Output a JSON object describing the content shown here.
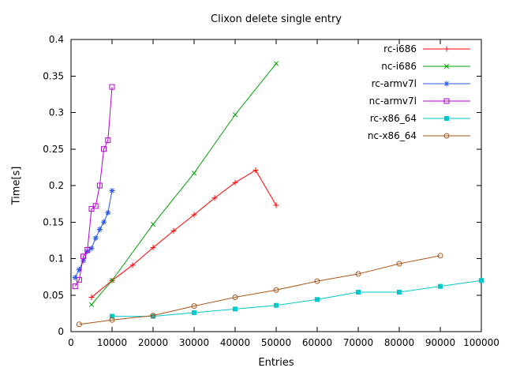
{
  "chart_data": {
    "type": "line",
    "title": "Clixon delete single entry",
    "xlabel": "Entries",
    "ylabel": "Time[s]",
    "xlim": [
      0,
      100000
    ],
    "ylim": [
      0,
      0.4
    ],
    "grid": false,
    "legend_position": "top-right-inside",
    "xticks": [
      {
        "v": 0,
        "label": "0"
      },
      {
        "v": 10000,
        "label": "10000"
      },
      {
        "v": 20000,
        "label": "20000"
      },
      {
        "v": 30000,
        "label": "30000"
      },
      {
        "v": 40000,
        "label": "40000"
      },
      {
        "v": 50000,
        "label": "50000"
      },
      {
        "v": 60000,
        "label": "60000"
      },
      {
        "v": 70000,
        "label": "70000"
      },
      {
        "v": 80000,
        "label": "80000"
      },
      {
        "v": 90000,
        "label": "90000"
      },
      {
        "v": 100000,
        "label": "100000"
      }
    ],
    "yticks": [
      {
        "v": 0,
        "label": "0"
      },
      {
        "v": 0.05,
        "label": "0.05"
      },
      {
        "v": 0.1,
        "label": "0.1"
      },
      {
        "v": 0.15,
        "label": "0.15"
      },
      {
        "v": 0.2,
        "label": "0.2"
      },
      {
        "v": 0.25,
        "label": "0.25"
      },
      {
        "v": 0.3,
        "label": "0.3"
      },
      {
        "v": 0.35,
        "label": "0.35"
      },
      {
        "v": 0.4,
        "label": "0.4"
      }
    ],
    "series": [
      {
        "name": "rc-i686",
        "color": "#ff0000",
        "marker": "plus",
        "points": [
          [
            5000,
            0.047
          ],
          [
            10000,
            0.07
          ],
          [
            15000,
            0.091
          ],
          [
            20000,
            0.115
          ],
          [
            25000,
            0.138
          ],
          [
            30000,
            0.16
          ],
          [
            35000,
            0.183
          ],
          [
            40000,
            0.204
          ],
          [
            45000,
            0.221
          ],
          [
            50000,
            0.173
          ]
        ]
      },
      {
        "name": "nc-i686",
        "color": "#00a000",
        "marker": "cross",
        "points": [
          [
            5000,
            0.037
          ],
          [
            10000,
            0.07
          ],
          [
            20000,
            0.147
          ],
          [
            30000,
            0.217
          ],
          [
            40000,
            0.297
          ],
          [
            50000,
            0.367
          ]
        ]
      },
      {
        "name": "rc-armv7l",
        "color": "#2b58e8",
        "marker": "asterisk",
        "points": [
          [
            1000,
            0.074
          ],
          [
            2000,
            0.085
          ],
          [
            3000,
            0.097
          ],
          [
            4000,
            0.11
          ],
          [
            5000,
            0.114
          ],
          [
            6000,
            0.128
          ],
          [
            7000,
            0.14
          ],
          [
            8000,
            0.15
          ],
          [
            9000,
            0.163
          ],
          [
            10000,
            0.193
          ]
        ]
      },
      {
        "name": "nc-armv7l",
        "color": "#b400d3",
        "marker": "square-open",
        "points": [
          [
            1000,
            0.062
          ],
          [
            2000,
            0.071
          ],
          [
            3000,
            0.103
          ],
          [
            4000,
            0.112
          ],
          [
            5000,
            0.168
          ],
          [
            6000,
            0.172
          ],
          [
            7000,
            0.2
          ],
          [
            8000,
            0.25
          ],
          [
            9000,
            0.262
          ],
          [
            10000,
            0.335
          ]
        ]
      },
      {
        "name": "rc-x86_64",
        "color": "#00c8c8",
        "marker": "square-filled",
        "points": [
          [
            10000,
            0.021
          ],
          [
            20000,
            0.021
          ],
          [
            30000,
            0.026
          ],
          [
            40000,
            0.031
          ],
          [
            50000,
            0.036
          ],
          [
            60000,
            0.044
          ],
          [
            70000,
            0.054
          ],
          [
            80000,
            0.054
          ],
          [
            90000,
            0.062
          ],
          [
            100000,
            0.07
          ]
        ]
      },
      {
        "name": "nc-x86_64",
        "color": "#a85417",
        "marker": "circle-open",
        "points": [
          [
            2000,
            0.01
          ],
          [
            10000,
            0.016
          ],
          [
            20000,
            0.022
          ],
          [
            30000,
            0.035
          ],
          [
            40000,
            0.047
          ],
          [
            50000,
            0.057
          ],
          [
            60000,
            0.069
          ],
          [
            70000,
            0.079
          ],
          [
            80000,
            0.093
          ],
          [
            90000,
            0.104
          ]
        ]
      }
    ]
  }
}
